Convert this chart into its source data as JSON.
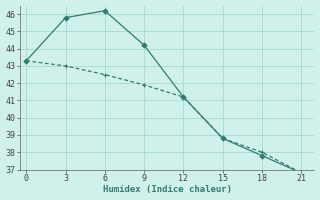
{
  "xlabel": "Humidex (Indice chaleur)",
  "line1_x": [
    0,
    3,
    6,
    9,
    12,
    15,
    18,
    21
  ],
  "line1_y": [
    43.3,
    45.8,
    46.2,
    44.2,
    41.2,
    38.8,
    37.8,
    36.8
  ],
  "line2_x": [
    0,
    3,
    6,
    9,
    12,
    15,
    18,
    21
  ],
  "line2_y": [
    43.3,
    43.0,
    42.5,
    41.9,
    41.2,
    38.8,
    38.0,
    36.8
  ],
  "line_color": "#2e7d6e",
  "bg_color": "#cff0eb",
  "grid_color": "#aaddd5",
  "xlim": [
    -0.5,
    22
  ],
  "ylim": [
    37,
    46.5
  ],
  "xticks": [
    0,
    3,
    6,
    9,
    12,
    15,
    18,
    21
  ],
  "yticks": [
    37,
    38,
    39,
    40,
    41,
    42,
    43,
    44,
    45,
    46
  ]
}
